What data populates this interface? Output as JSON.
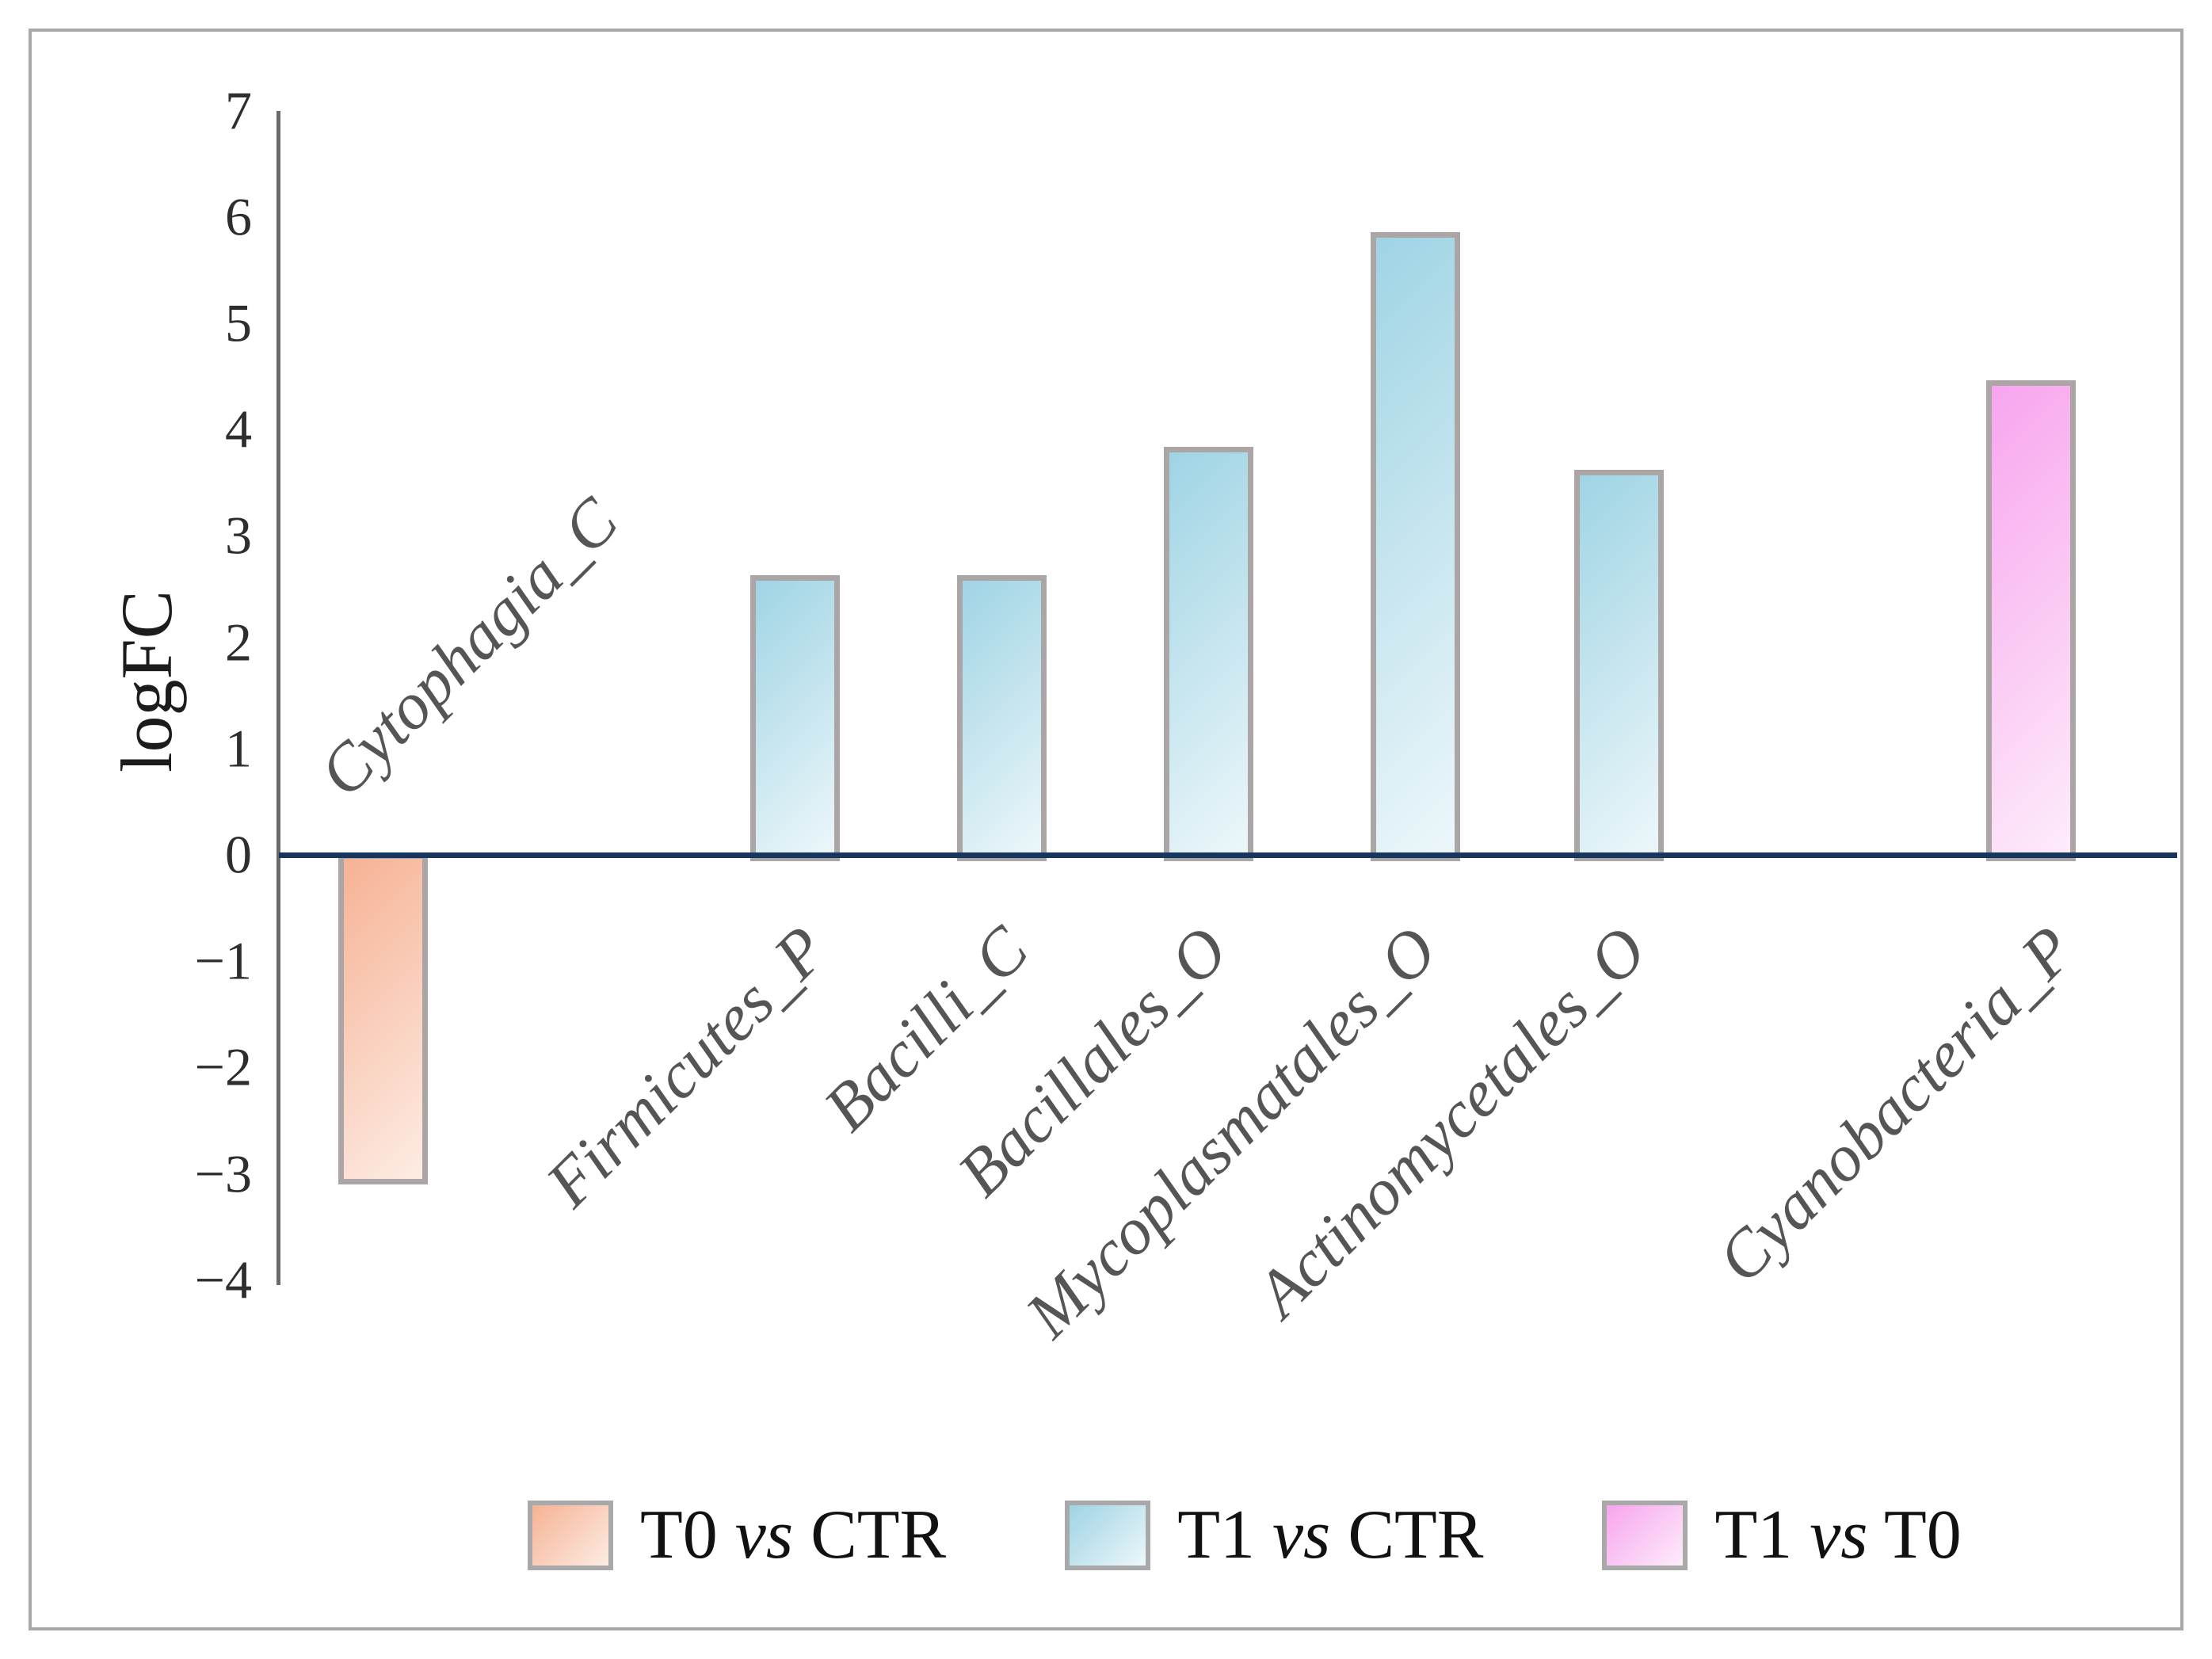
{
  "chart_data": {
    "type": "bar",
    "title": "",
    "xlabel": "",
    "ylabel": "logFC",
    "ylim": [
      -4,
      7
    ],
    "ytick_step": 1,
    "grid": false,
    "legend_position": "bottom",
    "categories": [
      "Cytophagia_C",
      "Firmicutes_P",
      "Bacilli_C",
      "Bacillales_O",
      "Mycoplasmatales_O",
      "Actinomycetales_O",
      "Cyanobacteria_P"
    ],
    "series": [
      {
        "name": "T0 vs CTR",
        "values": [
          -3.1,
          null,
          null,
          null,
          null,
          null,
          null
        ]
      },
      {
        "name": "T1 vs CTR",
        "values": [
          null,
          2.63,
          2.63,
          3.84,
          5.86,
          3.62,
          null
        ]
      },
      {
        "name": "T1 vs T0",
        "values": [
          null,
          null,
          null,
          null,
          null,
          null,
          4.46
        ]
      }
    ]
  },
  "ylabel": "logFC",
  "legend": {
    "items": [
      {
        "pre": "T0",
        "vs": "vs",
        "post": "CTR"
      },
      {
        "pre": "T1",
        "vs": "vs",
        "post": "CTR"
      },
      {
        "pre": "T1",
        "vs": "vs",
        "post": "T0"
      }
    ]
  },
  "colors": {
    "zero_line": "#16365f",
    "axis_line": "#6e6a6a",
    "bar_border": "#aba5a5",
    "series_fills": [
      {
        "start": "#f6b294",
        "end": "#fdece4"
      },
      {
        "start": "#9fd4e4",
        "end": "#edf7fa"
      },
      {
        "start": "#f8a5ee",
        "end": "#fdecfa"
      }
    ],
    "tick_text": "#2e2e2e",
    "category_text": "#555555",
    "legend_text": "#111111",
    "frame_border": "#a9a9a9"
  }
}
